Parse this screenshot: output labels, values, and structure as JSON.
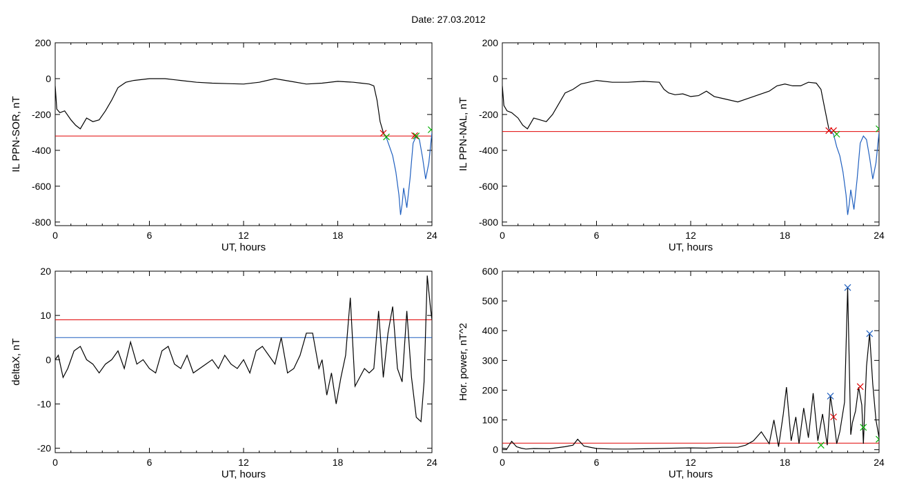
{
  "page": {
    "date_label": "Date:",
    "date_value": "27.03.2012"
  },
  "colors": {
    "signal": "#000000",
    "threshold_red": "#e00000",
    "threshold_blue": "#1f5fbf",
    "event_blue": "#1f5fbf",
    "marker_red": "#e00000",
    "marker_green": "#00b000"
  },
  "chart_data": [
    {
      "type": "line",
      "panel": "top-left",
      "xlabel": "UT, hours",
      "ylabel": "IL PPN-SOR, nT",
      "xlim": [
        0,
        24
      ],
      "ylim": [
        -820,
        200
      ],
      "xticks": [
        "0",
        "6",
        "12",
        "18",
        "24"
      ],
      "yticks": [
        "200",
        "0",
        "-200",
        "-400",
        "-600",
        "-800"
      ],
      "ytick_values": [
        200,
        0,
        -200,
        -400,
        -600,
        -800
      ],
      "hlines": [
        {
          "y": -320,
          "color": "red"
        }
      ],
      "series": [
        {
          "role": "main",
          "color": "black",
          "x": [
            0,
            0.1,
            0.3,
            0.6,
            1,
            1.3,
            1.6,
            2,
            2.4,
            2.8,
            3.2,
            3.6,
            4,
            4.5,
            5,
            6,
            7,
            8,
            9,
            10,
            11,
            12,
            13,
            14,
            15,
            16,
            17,
            18,
            19,
            19.5,
            20,
            20.3,
            20.5,
            20.7,
            20.9
          ],
          "y": [
            -40,
            -170,
            -190,
            -180,
            -230,
            -260,
            -280,
            -220,
            -240,
            -230,
            -180,
            -120,
            -50,
            -20,
            -10,
            0,
            0,
            -10,
            -20,
            -25,
            -28,
            -30,
            -20,
            0,
            -15,
            -30,
            -25,
            -15,
            -20,
            -25,
            -30,
            -40,
            -120,
            -240,
            -300
          ]
        },
        {
          "role": "highlight",
          "color": "blue",
          "x": [
            20.9,
            21.1,
            21.3,
            21.5,
            21.7,
            21.9,
            22,
            22.1,
            22.2,
            22.4,
            22.6,
            22.8,
            23,
            23.2,
            23.4,
            23.6,
            23.8,
            24
          ],
          "y": [
            -300,
            -330,
            -380,
            -430,
            -520,
            -650,
            -760,
            -700,
            -610,
            -720,
            -560,
            -360,
            -320,
            -340,
            -440,
            -560,
            -470,
            -300
          ]
        }
      ],
      "markers": [
        {
          "x": 20.9,
          "y": -305,
          "color": "red"
        },
        {
          "x": 21.1,
          "y": -325,
          "color": "green"
        },
        {
          "x": 22.9,
          "y": -318,
          "color": "red"
        },
        {
          "x": 23.0,
          "y": -320,
          "color": "green"
        },
        {
          "x": 23.95,
          "y": -285,
          "color": "green"
        }
      ]
    },
    {
      "type": "line",
      "panel": "top-right",
      "xlabel": "UT, hours",
      "ylabel": "IL PPN-NAL, nT",
      "xlim": [
        0,
        24
      ],
      "ylim": [
        -820,
        200
      ],
      "xticks": [
        "0",
        "6",
        "12",
        "18",
        "24"
      ],
      "yticks": [
        "200",
        "0",
        "-200",
        "-400",
        "-600",
        "-800"
      ],
      "ytick_values": [
        200,
        0,
        -200,
        -400,
        -600,
        -800
      ],
      "hlines": [
        {
          "y": -295,
          "color": "red"
        }
      ],
      "series": [
        {
          "role": "main",
          "color": "black",
          "x": [
            0,
            0.1,
            0.3,
            0.6,
            1,
            1.3,
            1.6,
            2,
            2.4,
            2.8,
            3.2,
            3.6,
            4,
            4.5,
            5,
            6,
            7,
            8,
            9,
            10,
            10.3,
            10.6,
            11,
            11.5,
            12,
            12.5,
            13,
            13.5,
            14,
            15,
            16,
            17,
            17.5,
            18,
            18.5,
            19,
            19.5,
            20,
            20.3,
            20.5,
            20.8
          ],
          "y": [
            -40,
            -150,
            -180,
            -190,
            -220,
            -260,
            -280,
            -220,
            -230,
            -240,
            -200,
            -140,
            -80,
            -60,
            -30,
            -10,
            -20,
            -20,
            -15,
            -20,
            -60,
            -80,
            -90,
            -85,
            -100,
            -95,
            -70,
            -100,
            -110,
            -130,
            -100,
            -70,
            -40,
            -30,
            -40,
            -40,
            -20,
            -25,
            -60,
            -150,
            -280
          ]
        },
        {
          "role": "highlight",
          "color": "blue",
          "x": [
            20.8,
            21.1,
            21.3,
            21.5,
            21.7,
            21.9,
            22,
            22.1,
            22.2,
            22.4,
            22.6,
            22.8,
            23,
            23.2,
            23.4,
            23.6,
            23.8,
            24
          ],
          "y": [
            -280,
            -310,
            -380,
            -430,
            -520,
            -650,
            -760,
            -700,
            -620,
            -730,
            -560,
            -360,
            -320,
            -340,
            -440,
            -560,
            -470,
            -300
          ]
        }
      ],
      "markers": [
        {
          "x": 20.8,
          "y": -290,
          "color": "red"
        },
        {
          "x": 21.1,
          "y": -290,
          "color": "red"
        },
        {
          "x": 21.3,
          "y": -310,
          "color": "green"
        },
        {
          "x": 24.0,
          "y": -280,
          "color": "green"
        }
      ]
    },
    {
      "type": "line",
      "panel": "bottom-left",
      "xlabel": "UT, hours",
      "ylabel": "deltaX, nT",
      "xlim": [
        0,
        24
      ],
      "ylim": [
        -21,
        20
      ],
      "xticks": [
        "0",
        "6",
        "12",
        "18",
        "24"
      ],
      "yticks": [
        "20",
        "10",
        "0",
        "-10",
        "-20"
      ],
      "ytick_values": [
        20,
        10,
        0,
        -10,
        -20
      ],
      "hlines": [
        {
          "y": 9,
          "color": "red"
        },
        {
          "y": 5,
          "color": "blue"
        }
      ],
      "series": [
        {
          "role": "main",
          "color": "black",
          "x": [
            0,
            0.2,
            0.5,
            0.8,
            1.2,
            1.6,
            2,
            2.4,
            2.8,
            3.2,
            3.6,
            4,
            4.4,
            4.8,
            5.2,
            5.6,
            6,
            6.4,
            6.8,
            7.2,
            7.6,
            8,
            8.4,
            8.8,
            9.2,
            9.6,
            10,
            10.4,
            10.8,
            11.2,
            11.6,
            12,
            12.4,
            12.8,
            13.2,
            13.6,
            14,
            14.4,
            14.8,
            15.2,
            15.6,
            16,
            16.4,
            16.8,
            17,
            17.3,
            17.6,
            17.9,
            18.2,
            18.5,
            18.8,
            19.1,
            19.4,
            19.7,
            20,
            20.3,
            20.6,
            20.9,
            21.2,
            21.5,
            21.8,
            22.1,
            22.4,
            22.7,
            23,
            23.3,
            23.5,
            23.7,
            23.9,
            24
          ],
          "y": [
            0,
            1,
            -4,
            -2,
            2,
            3,
            0,
            -1,
            -3,
            -1,
            0,
            2,
            -2,
            4,
            -1,
            0,
            -2,
            -3,
            2,
            3,
            -1,
            -2,
            1,
            -3,
            -2,
            -1,
            0,
            -2,
            1,
            -1,
            -2,
            0,
            -3,
            2,
            3,
            1,
            -1,
            5,
            -3,
            -2,
            1,
            6,
            6,
            -2,
            0,
            -8,
            -3,
            -10,
            -4,
            1,
            14,
            -6,
            -4,
            -2,
            -3,
            -2,
            11,
            -4,
            6,
            12,
            -2,
            -5,
            11,
            -4,
            -13,
            -14,
            -5,
            19,
            12,
            9
          ]
        }
      ],
      "markers": []
    },
    {
      "type": "line",
      "panel": "bottom-right",
      "xlabel": "UT, hours",
      "ylabel": "Hor. power, nT^2",
      "xlim": [
        0,
        24
      ],
      "ylim": [
        -10,
        600
      ],
      "xticks": [
        "0",
        "6",
        "12",
        "18",
        "24"
      ],
      "yticks": [
        "600",
        "500",
        "400",
        "300",
        "200",
        "100",
        "0"
      ],
      "ytick_values": [
        600,
        500,
        400,
        300,
        200,
        100,
        0
      ],
      "hlines": [
        {
          "y": 22,
          "color": "red"
        }
      ],
      "series": [
        {
          "role": "main",
          "color": "black",
          "x": [
            0,
            0.3,
            0.6,
            0.9,
            1.2,
            1.5,
            2,
            3,
            4,
            4.5,
            4.8,
            5.2,
            6,
            7,
            8,
            9,
            10,
            11,
            12,
            13,
            14,
            15,
            15.5,
            16,
            16.5,
            17,
            17.3,
            17.6,
            17.9,
            18.1,
            18.4,
            18.7,
            18.9,
            19.2,
            19.5,
            19.8,
            20.1,
            20.4,
            20.7,
            20.9,
            21.1,
            21.3,
            21.5,
            21.8,
            22,
            22.2,
            22.3,
            22.5,
            22.7,
            22.9,
            23,
            23.2,
            23.4,
            23.6,
            23.8,
            24
          ],
          "y": [
            5,
            3,
            28,
            10,
            5,
            2,
            4,
            3,
            10,
            15,
            35,
            12,
            4,
            2,
            2,
            3,
            4,
            5,
            6,
            5,
            8,
            8,
            15,
            30,
            60,
            20,
            100,
            10,
            120,
            210,
            30,
            110,
            20,
            140,
            40,
            190,
            30,
            120,
            15,
            180,
            110,
            20,
            60,
            160,
            545,
            50,
            90,
            130,
            210,
            150,
            20,
            280,
            390,
            220,
            100,
            40
          ]
        }
      ],
      "markers": [
        {
          "x": 20.9,
          "y": 180,
          "color": "blue"
        },
        {
          "x": 21.1,
          "y": 110,
          "color": "red"
        },
        {
          "x": 22.0,
          "y": 545,
          "color": "blue"
        },
        {
          "x": 22.8,
          "y": 212,
          "color": "red"
        },
        {
          "x": 23.0,
          "y": 75,
          "color": "green"
        },
        {
          "x": 23.4,
          "y": 390,
          "color": "blue"
        },
        {
          "x": 24.0,
          "y": 35,
          "color": "green"
        },
        {
          "x": 20.3,
          "y": 15,
          "color": "green"
        }
      ]
    }
  ]
}
